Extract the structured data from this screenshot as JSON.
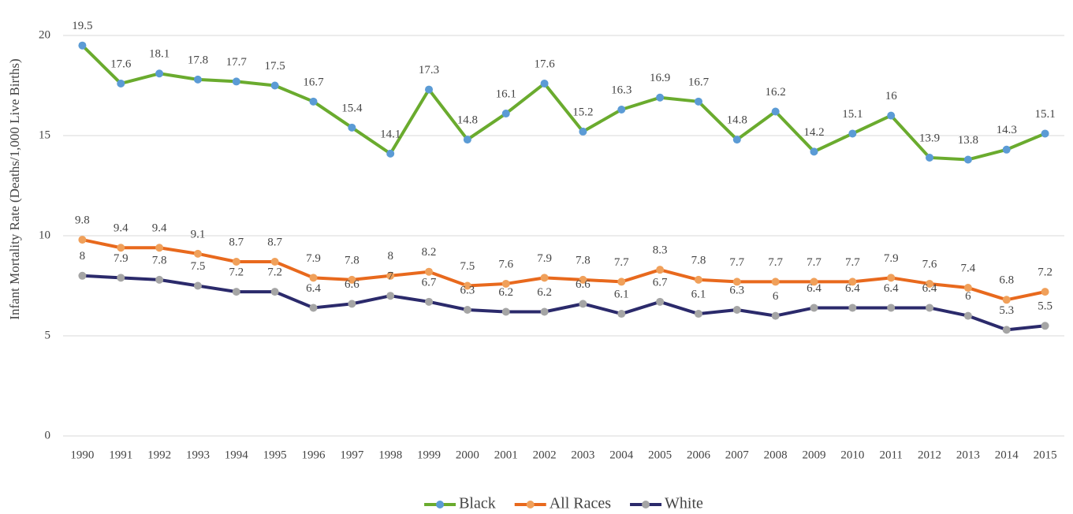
{
  "chart_data": {
    "type": "line",
    "y_label": "Infant Mortality Rate (Deaths/1,000 Live Births)",
    "categories": [
      "1990",
      "1991",
      "1992",
      "1993",
      "1994",
      "1995",
      "1996",
      "1997",
      "1998",
      "1999",
      "2000",
      "2001",
      "2002",
      "2003",
      "2004",
      "2005",
      "2006",
      "2007",
      "2008",
      "2009",
      "2010",
      "2011",
      "2012",
      "2013",
      "2014",
      "2015"
    ],
    "series": [
      {
        "name": "Black",
        "color": "#6aab2e",
        "marker_color": "#5b9bd5",
        "values": [
          19.5,
          17.6,
          18.1,
          17.8,
          17.7,
          17.5,
          16.7,
          15.4,
          14.1,
          17.3,
          14.8,
          16.1,
          17.6,
          15.2,
          16.3,
          16.9,
          16.7,
          14.8,
          16.2,
          14.2,
          15.1,
          16,
          13.9,
          13.8,
          14.3,
          15.1
        ]
      },
      {
        "name": "All Races",
        "color": "#e8691d",
        "marker_color": "#f0a05a",
        "values": [
          9.8,
          9.4,
          9.4,
          9.1,
          8.7,
          8.7,
          7.9,
          7.8,
          8,
          8.2,
          7.5,
          7.6,
          7.9,
          7.8,
          7.7,
          8.3,
          7.8,
          7.7,
          7.7,
          7.7,
          7.7,
          7.9,
          7.6,
          7.4,
          6.8,
          7.2
        ]
      },
      {
        "name": "White",
        "color": "#2b2a6b",
        "marker_color": "#a5a5a5",
        "values": [
          8,
          7.9,
          7.8,
          7.5,
          7.2,
          7.2,
          6.4,
          6.6,
          7,
          6.7,
          6.3,
          6.2,
          6.2,
          6.6,
          6.1,
          6.7,
          6.1,
          6.3,
          6,
          6.4,
          6.4,
          6.4,
          6.4,
          6,
          5.3,
          5.5
        ]
      }
    ],
    "ylim": [
      0,
      20
    ],
    "yticks": [
      0,
      5,
      10,
      15,
      20
    ],
    "grid": true,
    "data_labels": true,
    "legend": "bottom"
  }
}
